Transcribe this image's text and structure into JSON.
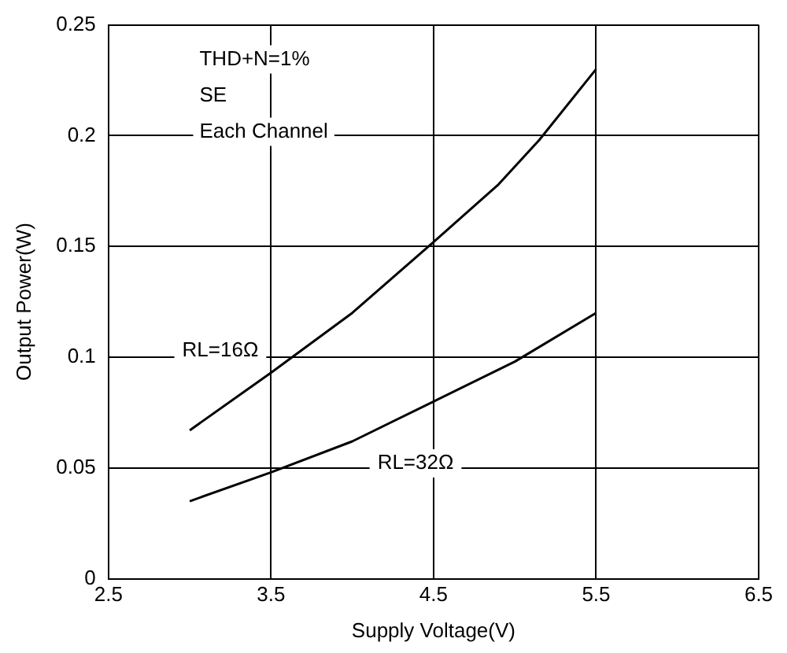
{
  "chart_data": {
    "type": "line",
    "xlabel": "Supply Voltage(V)",
    "ylabel": "Output Power(W)",
    "annotations": [
      "THD+N=1%",
      "SE",
      "Each Channel"
    ],
    "series": [
      {
        "name": "RL=16Ω",
        "color": "#000000",
        "x": [
          3.0,
          3.5,
          4.0,
          4.5,
          4.9,
          5.15,
          5.5
        ],
        "values": [
          0.067,
          0.093,
          0.12,
          0.152,
          0.178,
          0.198,
          0.23
        ]
      },
      {
        "name": "RL=32Ω",
        "color": "#000000",
        "x": [
          3.0,
          3.5,
          4.0,
          4.5,
          5.0,
          5.5
        ],
        "values": [
          0.035,
          0.048,
          0.062,
          0.08,
          0.098,
          0.12
        ]
      }
    ],
    "xlim": [
      2.5,
      6.5
    ],
    "xticks": [
      2.5,
      3.5,
      4.5,
      5.5,
      6.5
    ],
    "ylim": [
      0,
      0.25
    ],
    "yticks": [
      0,
      0.05,
      0.1,
      0.15,
      0.2,
      0.25
    ],
    "grid": true,
    "legend": false,
    "marker": "none",
    "line_style": "solid"
  }
}
